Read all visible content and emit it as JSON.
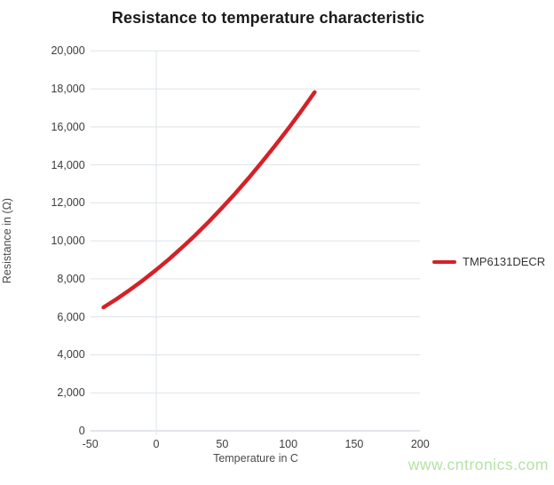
{
  "watermark": {
    "text": "www.cntronics.com",
    "color": "#b5e3a6"
  },
  "colors": {
    "series": "#d42127",
    "grid": "#dee4ea",
    "zero_line": "#c4ccd4",
    "tick_text": "#3d3d3d",
    "title_text": "#1b1b1b"
  },
  "legend": {
    "entries": [
      {
        "label": "TMP6131DECR",
        "color": "#d42127"
      }
    ],
    "position": "right"
  },
  "chart_data": {
    "type": "line",
    "title": "Resistance to temperature characteristic",
    "xlabel": "Temperature in C",
    "ylabel": "Resistance in (Ω)",
    "xlim": [
      -50,
      200
    ],
    "ylim": [
      0,
      20000
    ],
    "x_ticks": [
      -50,
      0,
      50,
      100,
      150,
      200
    ],
    "y_ticks": [
      0,
      2000,
      4000,
      6000,
      8000,
      10000,
      12000,
      14000,
      16000,
      18000,
      20000
    ],
    "grid": {
      "horizontal": true,
      "vertical_at_x": [
        0
      ]
    },
    "legend_position": "right",
    "series": [
      {
        "name": "TMP6131DECR",
        "color": "#d42127",
        "x": [
          -40,
          -30,
          -20,
          -10,
          0,
          10,
          20,
          25,
          30,
          40,
          50,
          60,
          70,
          80,
          90,
          100,
          110,
          120
        ],
        "y": [
          6500,
          6940,
          7420,
          7930,
          8480,
          9060,
          9680,
          10000,
          10330,
          11020,
          11750,
          12510,
          13310,
          14140,
          15010,
          15910,
          16850,
          17825
        ]
      }
    ]
  }
}
